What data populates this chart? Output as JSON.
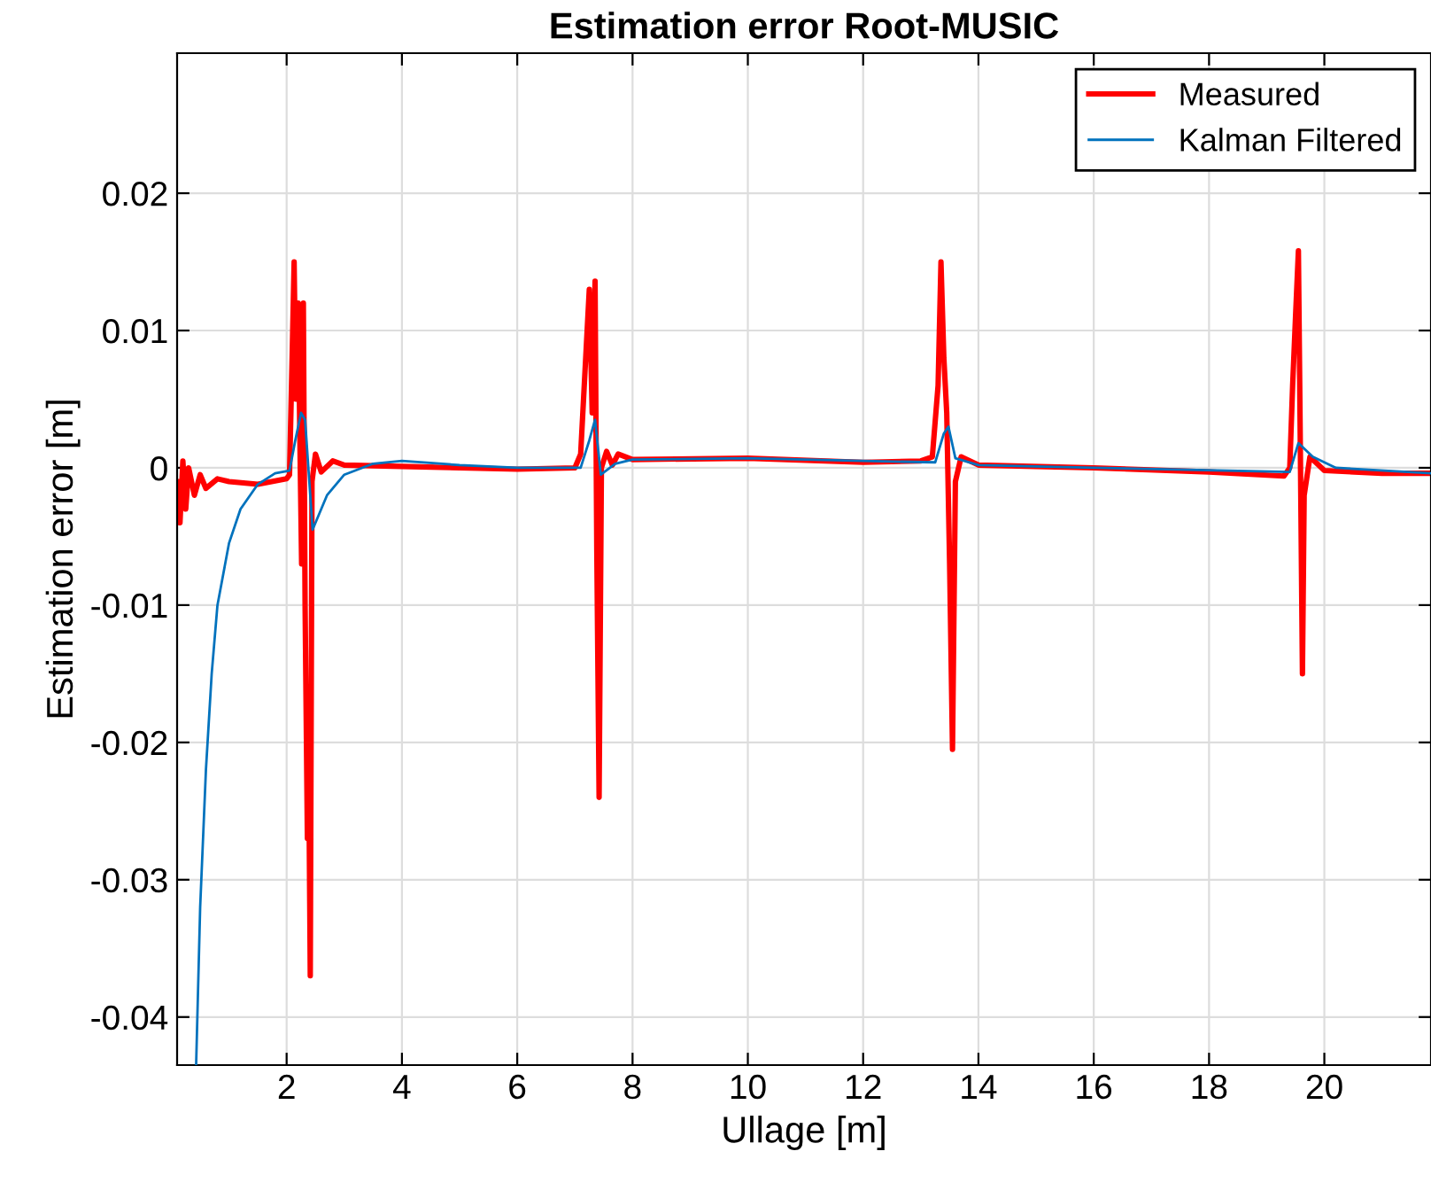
{
  "chart_data": {
    "type": "line",
    "title": "Estimation error Root-MUSIC",
    "xlabel": "Ullage [m]",
    "ylabel": "Estimation error [m]",
    "xlim": [
      0.1,
      21.85
    ],
    "ylim": [
      -0.0435,
      0.0302
    ],
    "xticks": [
      2,
      4,
      6,
      8,
      10,
      12,
      14,
      16,
      18,
      20
    ],
    "yticks": [
      -0.04,
      -0.03,
      -0.02,
      -0.01,
      0,
      0.01,
      0.02
    ],
    "grid": true,
    "legend": "top right",
    "series": [
      {
        "name": "Measured",
        "color": "#ff0000",
        "x": [
          0.1,
          0.15,
          0.2,
          0.25,
          0.3,
          0.4,
          0.5,
          0.6,
          0.8,
          1.0,
          1.5,
          2.0,
          2.05,
          2.1,
          2.13,
          2.16,
          2.2,
          2.23,
          2.26,
          2.29,
          2.32,
          2.36,
          2.38,
          2.41,
          2.44,
          2.5,
          2.6,
          2.8,
          3.0,
          4,
          6,
          7.0,
          7.1,
          7.2,
          7.25,
          7.3,
          7.35,
          7.38,
          7.42,
          7.46,
          7.55,
          7.65,
          7.75,
          8.0,
          10,
          12,
          13.0,
          13.2,
          13.3,
          13.35,
          13.4,
          13.45,
          13.5,
          13.55,
          13.6,
          13.7,
          14,
          16,
          18,
          19.3,
          19.4,
          19.45,
          19.5,
          19.55,
          19.58,
          19.62,
          19.65,
          19.75,
          20,
          21,
          21.85
        ],
        "values": [
          -0.001,
          -0.004,
          0.0005,
          -0.003,
          0.0,
          -0.002,
          -0.0005,
          -0.0015,
          -0.0008,
          -0.001,
          -0.0012,
          -0.0008,
          -0.0005,
          0.009,
          0.015,
          0.005,
          0.012,
          0.002,
          -0.007,
          0.012,
          -0.01,
          -0.027,
          -0.02,
          -0.037,
          -0.001,
          0.001,
          -0.0003,
          0.0005,
          0.0002,
          0.0001,
          -0.0001,
          0.0,
          0.001,
          0.009,
          0.013,
          0.004,
          0.0136,
          -0.006,
          -0.024,
          0.0,
          0.0012,
          0.0002,
          0.001,
          0.0006,
          0.0007,
          0.0004,
          0.0005,
          0.0008,
          0.006,
          0.015,
          0.008,
          0.004,
          -0.007,
          -0.0205,
          -0.001,
          0.0008,
          0.0002,
          0.0,
          -0.0003,
          -0.0006,
          0.0,
          0.006,
          0.011,
          0.0158,
          0.003,
          -0.015,
          -0.002,
          0.0008,
          -0.0002,
          -0.0004,
          -0.0004
        ]
      },
      {
        "name": "Kalman Filtered",
        "color": "#0072bd",
        "x": [
          0.43,
          0.5,
          0.6,
          0.7,
          0.8,
          1.0,
          1.2,
          1.5,
          1.8,
          2.05,
          2.15,
          2.25,
          2.32,
          2.45,
          2.7,
          3.0,
          3.5,
          4.0,
          5,
          6,
          7.1,
          7.25,
          7.35,
          7.45,
          7.7,
          8,
          10,
          12,
          13.25,
          13.4,
          13.48,
          13.6,
          14,
          16,
          19.4,
          19.55,
          19.8,
          20.2,
          21.85
        ],
        "values": [
          -0.0435,
          -0.032,
          -0.022,
          -0.015,
          -0.01,
          -0.0055,
          -0.003,
          -0.0012,
          -0.0004,
          -0.0002,
          0.002,
          0.004,
          0.0035,
          -0.0045,
          -0.002,
          -0.0005,
          0.0003,
          0.0005,
          0.0002,
          0.0,
          0.0,
          0.002,
          0.0035,
          -0.0005,
          0.0003,
          0.0006,
          0.0007,
          0.0005,
          0.0004,
          0.0025,
          0.003,
          0.0007,
          0.0002,
          0.0,
          -0.0003,
          0.0018,
          0.0008,
          0.0,
          -0.0004
        ]
      }
    ]
  }
}
